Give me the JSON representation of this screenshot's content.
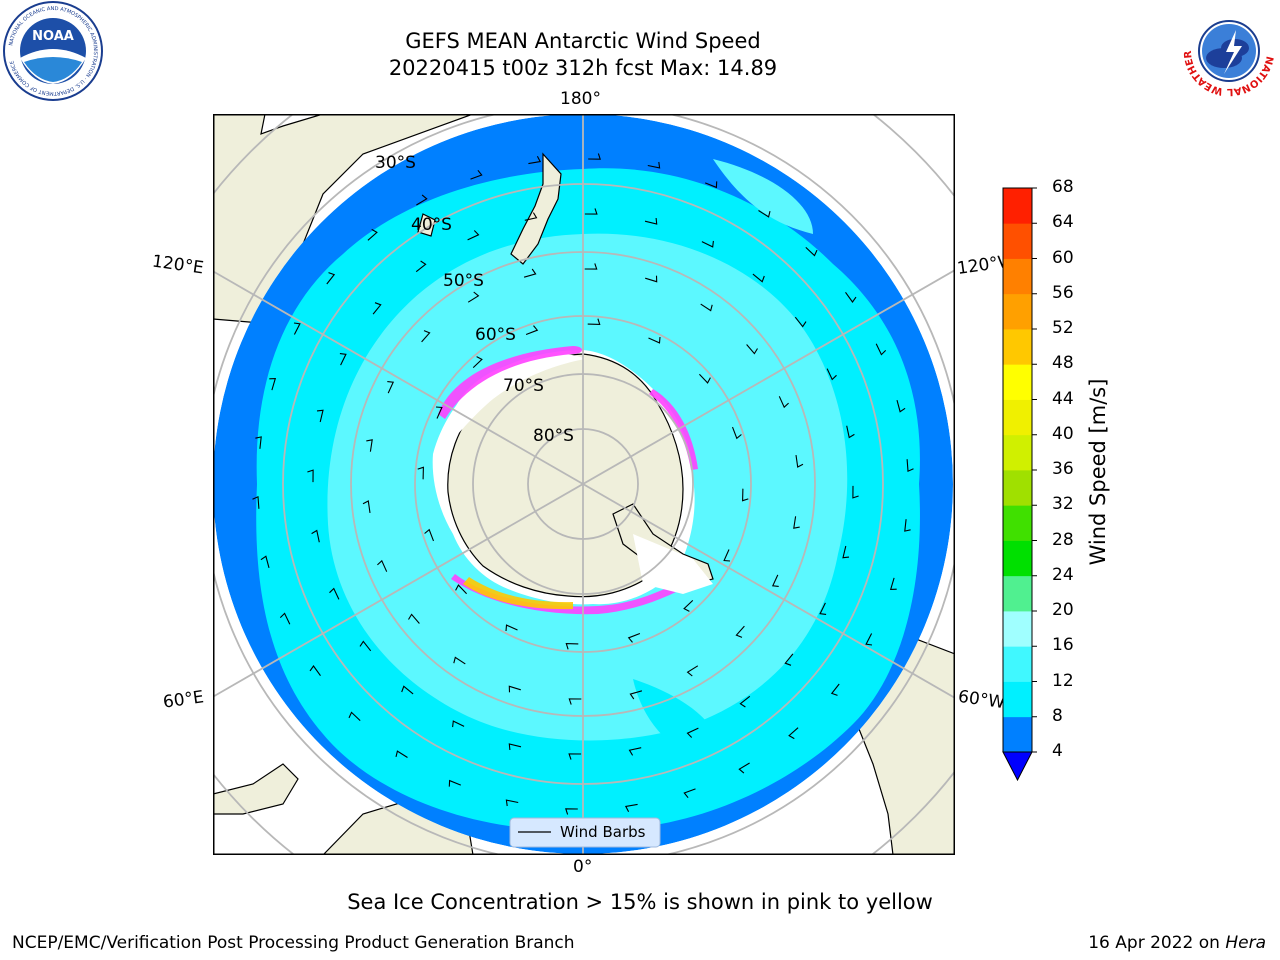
{
  "header": {
    "title_line1": "GEFS MEAN Antarctic Wind Speed",
    "title_line2": "20220415 t00z 312h fcst   Max: 14.89"
  },
  "logos": {
    "left": "NOAA",
    "left_ring_text": "NATIONAL OCEANIC AND ATMOSPHERIC ADMINISTRATION · U.S. DEPARTMENT OF COMMERCE",
    "right_ring_text": "NATIONAL WEATHER SERVICE"
  },
  "map": {
    "longitude_labels": {
      "top": "180°",
      "bottom": "0°",
      "upper_left": "120°E",
      "upper_right": "120°W",
      "lower_left": "60°E",
      "lower_right": "60°W"
    },
    "latitude_labels": [
      "30°S",
      "40°S",
      "50°S",
      "60°S",
      "70°S",
      "80°S"
    ],
    "legend_label": "Wind Barbs"
  },
  "colorbar": {
    "label": "Wind Speed [m/s]",
    "ticks": [
      "4",
      "8",
      "12",
      "16",
      "20",
      "24",
      "28",
      "32",
      "36",
      "40",
      "44",
      "48",
      "52",
      "56",
      "60",
      "64",
      "68"
    ],
    "colors": [
      "#0080ff",
      "#00f0ff",
      "#40f8ff",
      "#a0ffff",
      "#50f090",
      "#00e000",
      "#40e000",
      "#a0e000",
      "#d0f000",
      "#f0f000",
      "#ffff00",
      "#ffc800",
      "#ffa000",
      "#ff8000",
      "#ff5000",
      "#ff2000"
    ],
    "under_color": "#0000ff"
  },
  "colors": {
    "ocean_low": "#0080ff",
    "ocean_mid": "#00f0ff",
    "ocean_high": "#5cf8ff",
    "land": "#efefdb",
    "ice_edge": "#ff40ff"
  },
  "footer": {
    "caption": "Sea Ice Concentration > 15% is shown in pink to yellow",
    "left": "NCEP/EMC/Verification Post Processing Product Generation Branch",
    "right_prefix": "16 Apr 2022 on ",
    "right_machine": "Hera"
  }
}
